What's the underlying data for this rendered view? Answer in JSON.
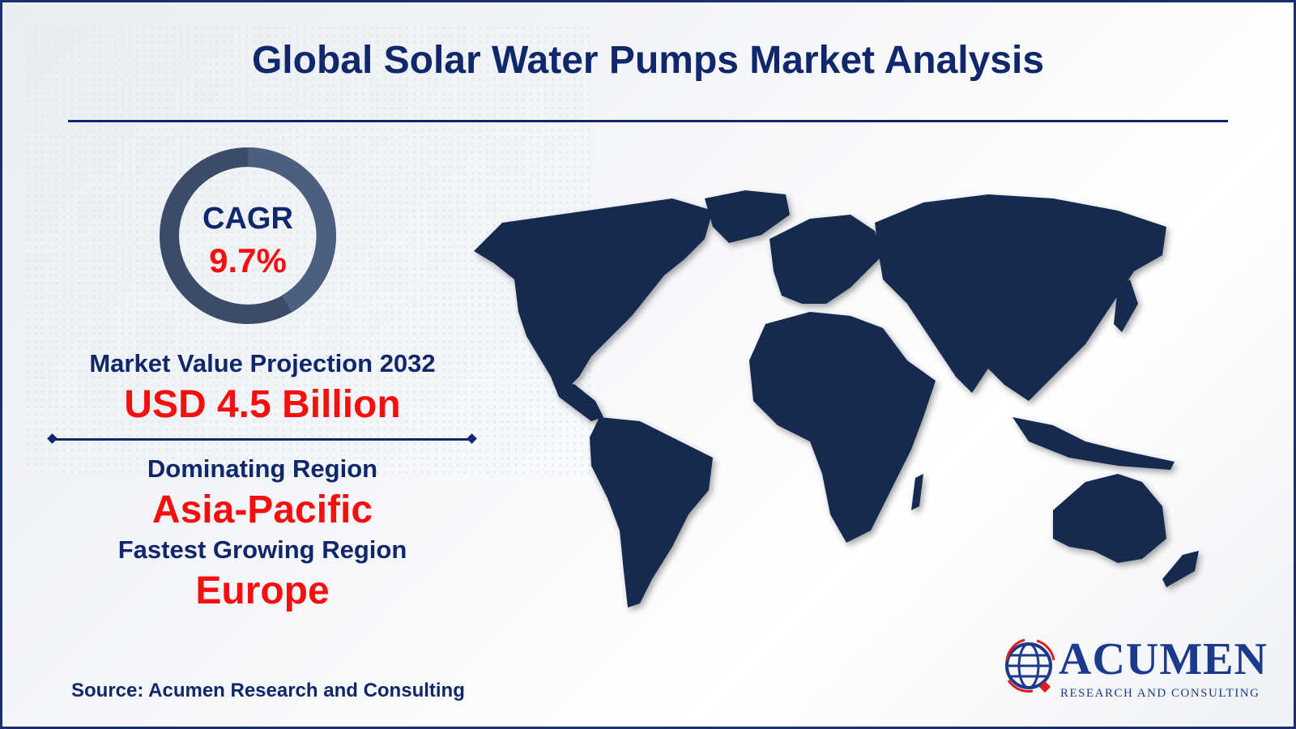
{
  "title": "Global Solar Water Pumps Market Analysis",
  "cagr": {
    "label": "CAGR",
    "value": "9.7%"
  },
  "market_value": {
    "label": "Market Value Projection 2032",
    "value": "USD 4.5 Billion"
  },
  "dominating_region": {
    "label": "Dominating Region",
    "value": "Asia-Pacific"
  },
  "fastest_region": {
    "label": "Fastest Growing Region",
    "value": "Europe"
  },
  "source": "Source: Acumen Research and Consulting",
  "logo": {
    "name": "ACUMEN",
    "tagline": "RESEARCH AND CONSULTING"
  },
  "colors": {
    "navy": "#10276b",
    "accent_red": "#f50f0f",
    "map": "#13294f",
    "donut": "#3f506e"
  },
  "icons": [
    "world-map",
    "donut-ring",
    "globe-logo"
  ]
}
